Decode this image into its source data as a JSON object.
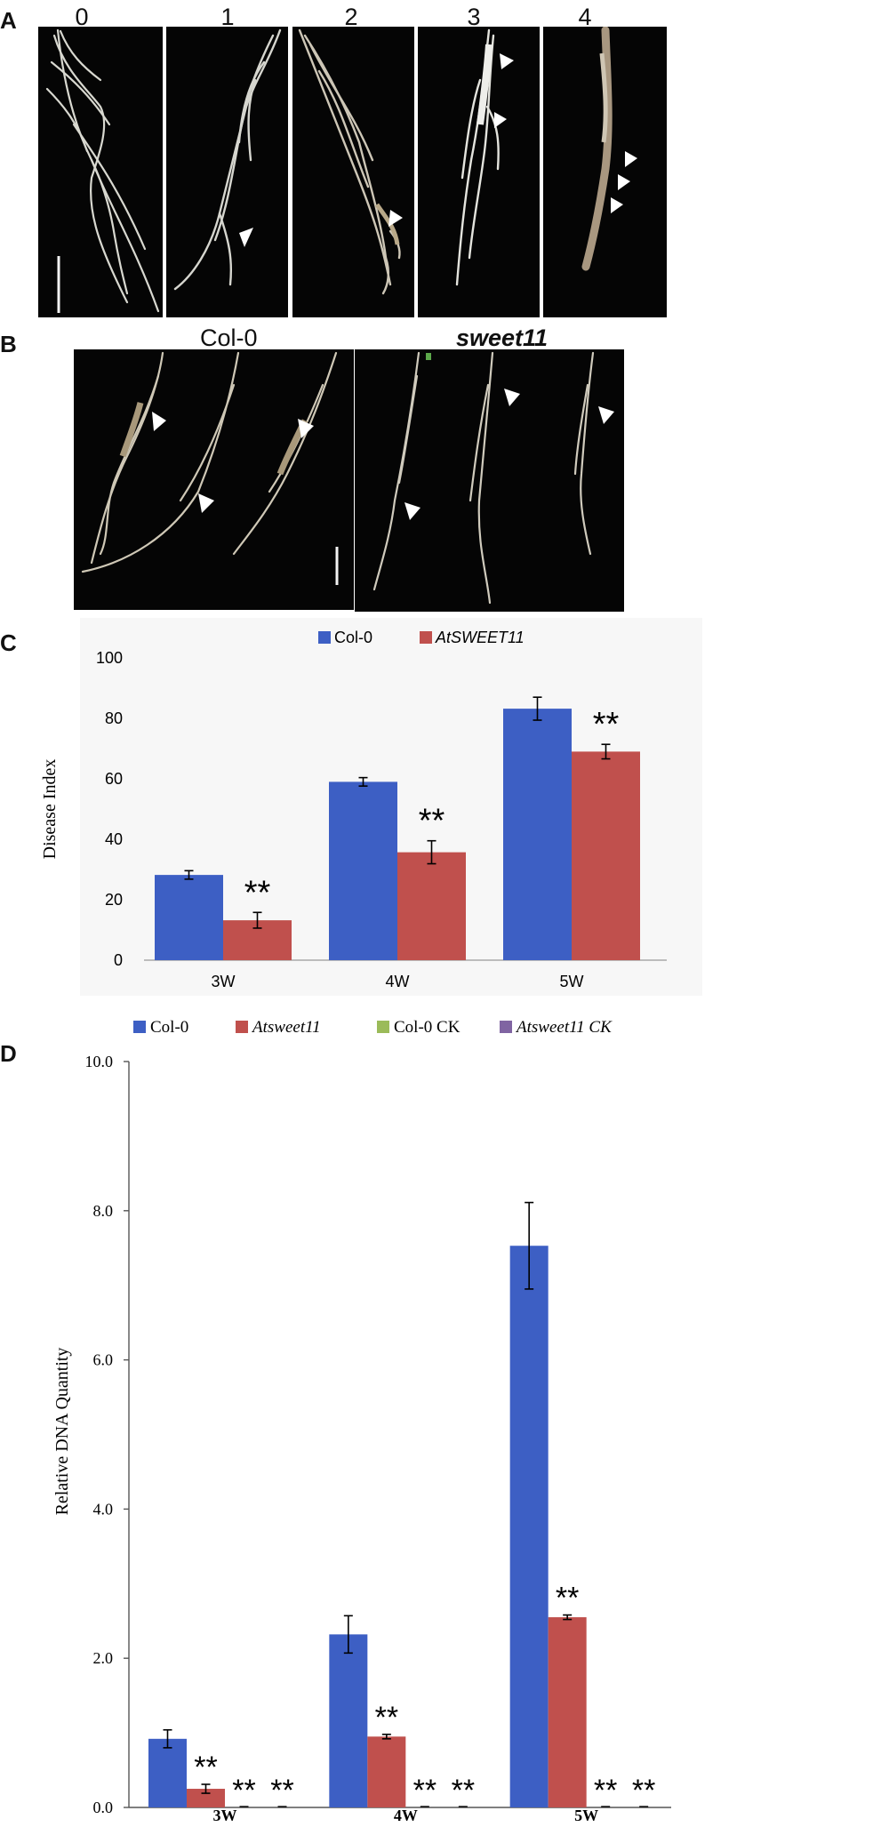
{
  "panel_a": {
    "letter": "A",
    "grades": [
      "0",
      "1",
      "2",
      "3",
      "4"
    ]
  },
  "panel_b": {
    "letter": "B",
    "genotypes": [
      "Col-0",
      "sweet11"
    ]
  },
  "chart_data": [
    {
      "panel": "C",
      "type": "bar",
      "categories": [
        "3W",
        "4W",
        "5W"
      ],
      "series": [
        {
          "name": "Col-0",
          "color": "#3d5fc4",
          "values": [
            28.2,
            59.0,
            83.2
          ],
          "errors": [
            1.4,
            1.4,
            3.8
          ]
        },
        {
          "name": "AtSWEET11",
          "color": "#c0504d",
          "values": [
            13.2,
            35.7,
            69.0
          ],
          "errors": [
            2.6,
            3.8,
            2.4
          ]
        }
      ],
      "significance": [
        "**",
        "**",
        "**"
      ],
      "ylabel": "Disease Index",
      "ylim": [
        0,
        100
      ],
      "yticks": [
        "0",
        "20",
        "40",
        "60",
        "80",
        "100"
      ],
      "legend_position": "top"
    },
    {
      "panel": "D",
      "type": "bar",
      "categories": [
        "3W",
        "4W",
        "5W"
      ],
      "series": [
        {
          "name": "Col-0",
          "color": "#3d5fc4",
          "values": [
            0.92,
            2.32,
            7.53
          ],
          "errors": [
            0.12,
            0.25,
            0.58
          ]
        },
        {
          "name": "Atsweet11",
          "color": "#c0504d",
          "values": [
            0.25,
            0.95,
            2.55
          ],
          "errors": [
            0.06,
            0.03,
            0.03
          ]
        },
        {
          "name": "Col-0 CK",
          "color": "#9bbb59",
          "values": [
            0.0,
            0.0,
            0.0
          ],
          "errors": [
            0,
            0,
            0
          ]
        },
        {
          "name": "Atsweet11 CK",
          "color": "#8064a2",
          "values": [
            0.0,
            0.0,
            0.0
          ],
          "errors": [
            0,
            0,
            0
          ]
        }
      ],
      "significance_series": [
        "Atsweet11",
        "Col-0 CK",
        "Atsweet11 CK"
      ],
      "significance": "**",
      "ylabel": "Relative DNA Quantity",
      "ylim": [
        0,
        10
      ],
      "yticks": [
        "0.0",
        "2.0",
        "4.0",
        "6.0",
        "8.0",
        "10.0"
      ],
      "legend_position": "top"
    }
  ]
}
